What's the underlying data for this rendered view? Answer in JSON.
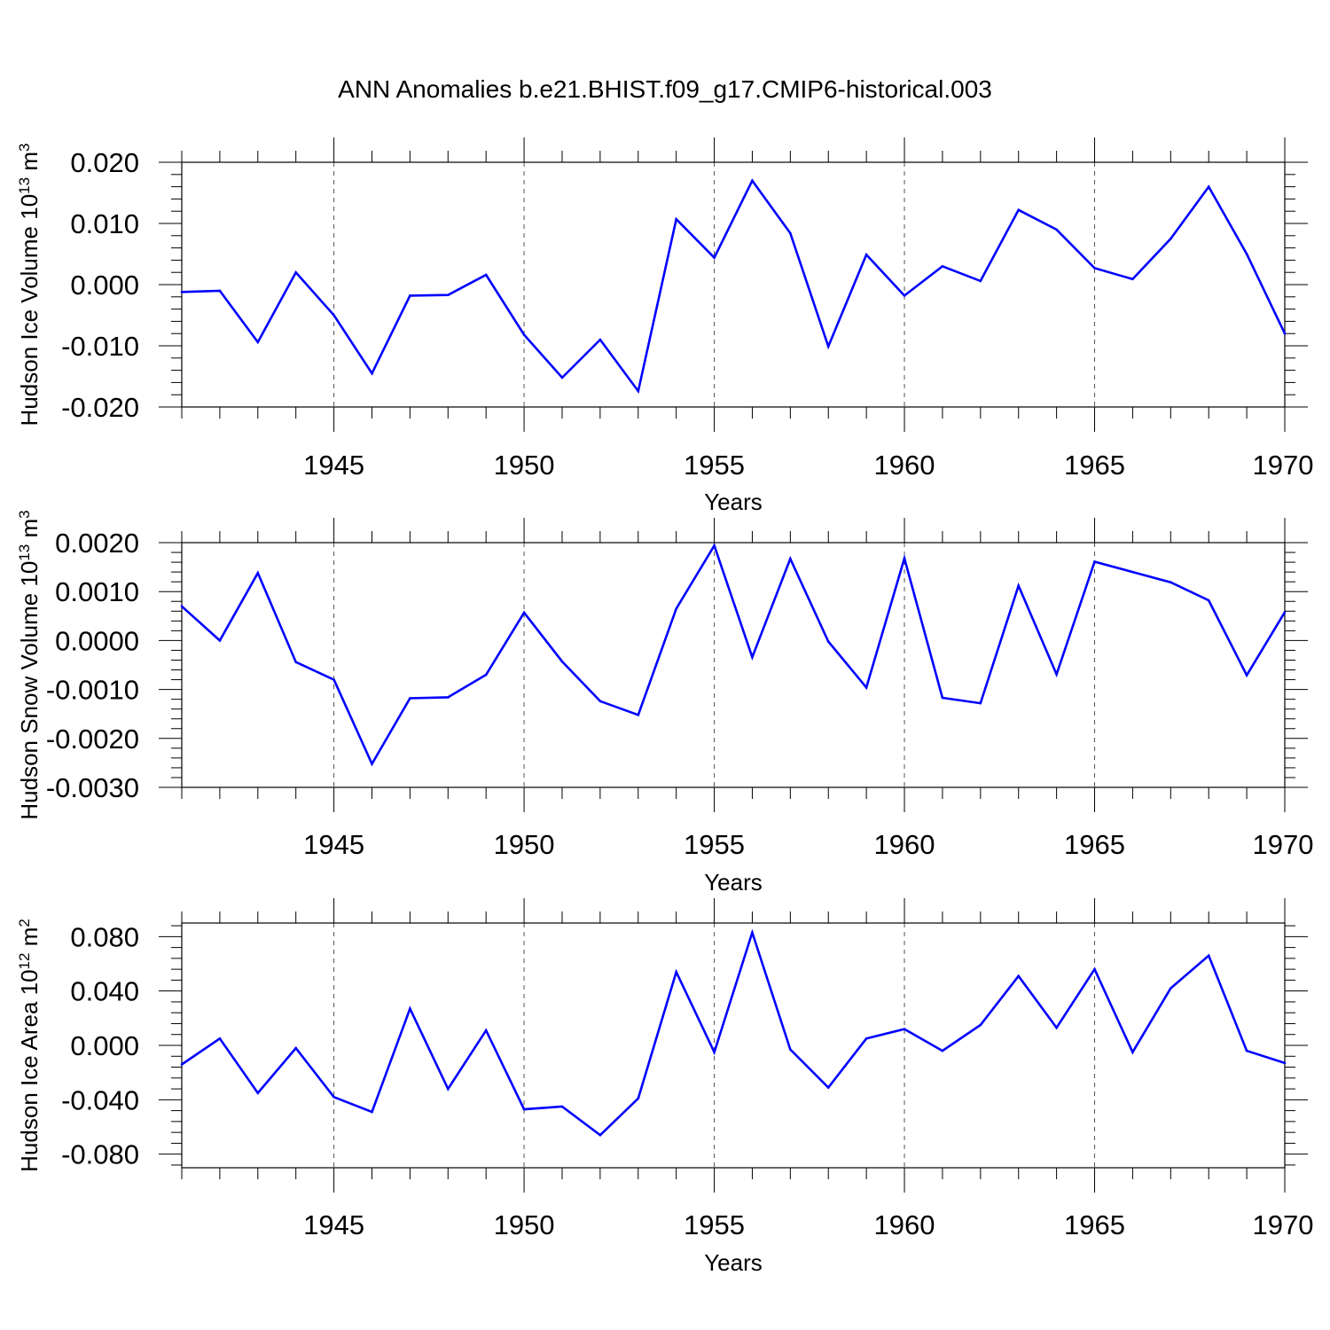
{
  "title": "ANN Anomalies b.e21.BHIST.f09_g17.CMIP6-historical.003",
  "line_color": "#0000ff",
  "chart_data": [
    {
      "type": "line",
      "ylabel": "Hudson Ice Volume 10",
      "ylabel_exp": "13",
      "ylabel_unit": " m",
      "ylabel_unit_exp": "3",
      "xlabel": "Years",
      "xlim": [
        1941,
        1970
      ],
      "ylim": [
        -0.02,
        0.02
      ],
      "yticks": [
        "-0.020",
        "-0.010",
        "0.000",
        "0.010",
        "0.020"
      ],
      "ytick_values": [
        -0.02,
        -0.01,
        0,
        0.01,
        0.02
      ],
      "xticks": [
        "1945",
        "1950",
        "1955",
        "1960",
        "1965",
        "1970"
      ],
      "xtick_values": [
        1945,
        1950,
        1955,
        1960,
        1965,
        1970
      ],
      "grid": "vertical dashed at major x ticks",
      "x": [
        1941,
        1942,
        1943,
        1944,
        1945,
        1946,
        1947,
        1948,
        1949,
        1950,
        1951,
        1952,
        1953,
        1954,
        1955,
        1956,
        1957,
        1958,
        1959,
        1960,
        1961,
        1962,
        1963,
        1964,
        1965,
        1966,
        1967,
        1968,
        1969,
        1970
      ],
      "values": [
        -0.0012,
        -0.001,
        -0.0094,
        0.002,
        -0.005,
        -0.0145,
        -0.0018,
        -0.0017,
        0.0016,
        -0.0082,
        -0.0152,
        -0.009,
        -0.0174,
        0.0107,
        0.0044,
        0.017,
        0.0084,
        -0.0101,
        0.0049,
        -0.0018,
        0.003,
        0.0006,
        0.0122,
        0.009,
        0.0027,
        0.0009,
        0.0075,
        0.016,
        0.005,
        -0.008
      ]
    },
    {
      "type": "line",
      "ylabel": "Hudson Snow Volume 10",
      "ylabel_exp": "13",
      "ylabel_unit": " m",
      "ylabel_unit_exp": "3",
      "xlabel": "Years",
      "xlim": [
        1941,
        1970
      ],
      "ylim": [
        -0.003,
        0.002
      ],
      "yticks": [
        "-0.0030",
        "-0.0020",
        "-0.0010",
        "0.0000",
        "0.0010",
        "0.0020"
      ],
      "ytick_values": [
        -0.003,
        -0.002,
        -0.001,
        0,
        0.001,
        0.002
      ],
      "xticks": [
        "1945",
        "1950",
        "1955",
        "1960",
        "1965",
        "1970"
      ],
      "xtick_values": [
        1945,
        1950,
        1955,
        1960,
        1965,
        1970
      ],
      "grid": "vertical dashed at major x ticks",
      "x": [
        1941,
        1942,
        1943,
        1944,
        1945,
        1946,
        1947,
        1948,
        1949,
        1950,
        1951,
        1952,
        1953,
        1954,
        1955,
        1956,
        1957,
        1958,
        1959,
        1960,
        1961,
        1962,
        1963,
        1964,
        1965,
        1966,
        1967,
        1968,
        1969,
        1970
      ],
      "values": [
        0.0007,
        0.0,
        0.00138,
        -0.00044,
        -0.0008,
        -0.00252,
        -0.00118,
        -0.00116,
        -0.0007,
        0.00057,
        -0.00043,
        -0.00124,
        -0.00152,
        0.00065,
        0.00194,
        -0.00034,
        0.00167,
        -2e-05,
        -0.00096,
        0.00168,
        -0.00117,
        -0.00128,
        0.00112,
        -0.00069,
        0.00161,
        0.0014,
        0.00119,
        0.00082,
        -0.00071,
        0.00058
      ]
    },
    {
      "type": "line",
      "ylabel": "Hudson Ice Area 10",
      "ylabel_exp": "12",
      "ylabel_unit": " m",
      "ylabel_unit_exp": "2",
      "xlabel": "Years",
      "xlim": [
        1941,
        1970
      ],
      "ylim": [
        -0.09,
        0.09
      ],
      "yticks": [
        "-0.080",
        "-0.040",
        "0.000",
        "0.040",
        "0.080"
      ],
      "ytick_values": [
        -0.08,
        -0.04,
        0,
        0.04,
        0.08
      ],
      "xticks": [
        "1945",
        "1950",
        "1955",
        "1960",
        "1965",
        "1970"
      ],
      "xtick_values": [
        1945,
        1950,
        1955,
        1960,
        1965,
        1970
      ],
      "grid": "vertical dashed at major x ticks",
      "x": [
        1941,
        1942,
        1943,
        1944,
        1945,
        1946,
        1947,
        1948,
        1949,
        1950,
        1951,
        1952,
        1953,
        1954,
        1955,
        1956,
        1957,
        1958,
        1959,
        1960,
        1961,
        1962,
        1963,
        1964,
        1965,
        1966,
        1967,
        1968,
        1969,
        1970
      ],
      "values": [
        -0.014,
        0.005,
        -0.035,
        -0.002,
        -0.038,
        -0.049,
        0.027,
        -0.032,
        0.011,
        -0.047,
        -0.045,
        -0.066,
        -0.039,
        0.054,
        -0.005,
        0.083,
        -0.003,
        -0.031,
        0.005,
        0.012,
        -0.004,
        0.015,
        0.051,
        0.013,
        0.056,
        -0.005,
        0.042,
        0.066,
        -0.004,
        -0.013
      ]
    }
  ]
}
